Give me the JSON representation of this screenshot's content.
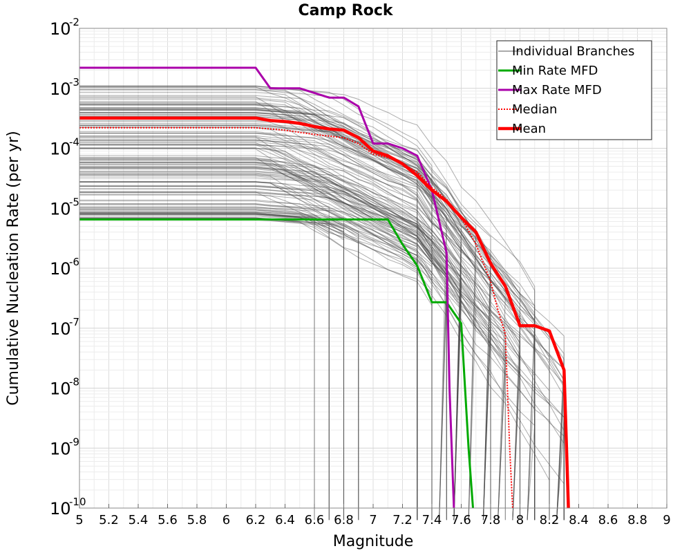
{
  "chart_data": {
    "type": "line",
    "title": "Camp Rock",
    "xlabel": "Magnitude",
    "ylabel": "Cumulative Nucleation Rate (per yr)",
    "xlim": [
      5,
      9
    ],
    "ylim_log10": [
      -10,
      -2
    ],
    "x_ticks": [
      "5",
      "5.2",
      "5.4",
      "5.6",
      "5.8",
      "6",
      "6.2",
      "6.4",
      "6.6",
      "6.8",
      "7",
      "7.2",
      "7.4",
      "7.6",
      "7.8",
      "8",
      "8.2",
      "8.4",
      "8.6",
      "8.8",
      "9"
    ],
    "y_ticks": [
      {
        "base": "10",
        "exp": "-2",
        "log": -2
      },
      {
        "base": "10",
        "exp": "-3",
        "log": -3
      },
      {
        "base": "10",
        "exp": "-4",
        "log": -4
      },
      {
        "base": "10",
        "exp": "-5",
        "log": -5
      },
      {
        "base": "10",
        "exp": "-6",
        "log": -6
      },
      {
        "base": "10",
        "exp": "-7",
        "log": -7
      },
      {
        "base": "10",
        "exp": "-8",
        "log": -8
      },
      {
        "base": "10",
        "exp": "-9",
        "log": -9
      },
      {
        "base": "10",
        "exp": "-10",
        "log": -10
      }
    ],
    "grid": true,
    "legend_position": "top-right",
    "legend": [
      "Individual Branches",
      "Min Rate MFD",
      "Max Rate MFD",
      "Median",
      "Mean"
    ],
    "series": [
      {
        "name": "Min Rate MFD",
        "color": "#00aa00",
        "style": "solid",
        "x": [
          5.0,
          6.2,
          6.7,
          7.1,
          7.2,
          7.3,
          7.4,
          7.5,
          7.6,
          7.65,
          7.68
        ],
        "y": [
          6.5e-06,
          6.5e-06,
          6.5e-06,
          6.5e-06,
          2.5e-06,
          1.1e-06,
          2.7e-07,
          2.7e-07,
          1.2e-07,
          1e-09,
          1e-10
        ]
      },
      {
        "name": "Max Rate MFD",
        "color": "#aa00aa",
        "style": "solid",
        "x": [
          5.0,
          6.2,
          6.3,
          6.5,
          6.7,
          6.8,
          6.9,
          7.0,
          7.1,
          7.2,
          7.3,
          7.4,
          7.5,
          7.52,
          7.55
        ],
        "y": [
          0.0022,
          0.0022,
          0.001,
          0.001,
          0.0007,
          0.0007,
          0.0005,
          0.00012,
          0.00012,
          0.0001,
          7.5e-05,
          2e-05,
          1.8e-06,
          1e-08,
          1e-10
        ]
      },
      {
        "name": "Median",
        "color": "#ff0000",
        "style": "dotted",
        "x": [
          5.0,
          6.2,
          6.4,
          6.6,
          6.8,
          6.9,
          7.0,
          7.1,
          7.2,
          7.3,
          7.4,
          7.5,
          7.6,
          7.7,
          7.8,
          7.85,
          7.9,
          7.93,
          7.95
        ],
        "y": [
          0.00022,
          0.00022,
          0.0002,
          0.00017,
          0.00015,
          0.00012,
          8e-05,
          7e-05,
          5.5e-05,
          4e-05,
          2.2e-05,
          1.4e-05,
          7e-06,
          2.5e-06,
          6e-07,
          2e-07,
          8e-08,
          1e-09,
          1e-10
        ]
      },
      {
        "name": "Mean",
        "color": "#ff0000",
        "style": "thick",
        "x": [
          5.0,
          6.2,
          6.3,
          6.4,
          6.5,
          6.6,
          6.7,
          6.8,
          6.9,
          7.0,
          7.1,
          7.2,
          7.3,
          7.4,
          7.5,
          7.6,
          7.7,
          7.8,
          7.9,
          8.0,
          8.1,
          8.2,
          8.3,
          8.33
        ],
        "y": [
          0.00032,
          0.00032,
          0.00029,
          0.00028,
          0.00026,
          0.00023,
          0.00021,
          0.0002,
          0.00015,
          9e-05,
          7.5e-05,
          5.5e-05,
          3.5e-05,
          2e-05,
          1.3e-05,
          7e-06,
          4e-06,
          1.2e-06,
          5e-07,
          1.1e-07,
          1.1e-07,
          9e-08,
          2e-08,
          1e-10
        ]
      }
    ]
  }
}
